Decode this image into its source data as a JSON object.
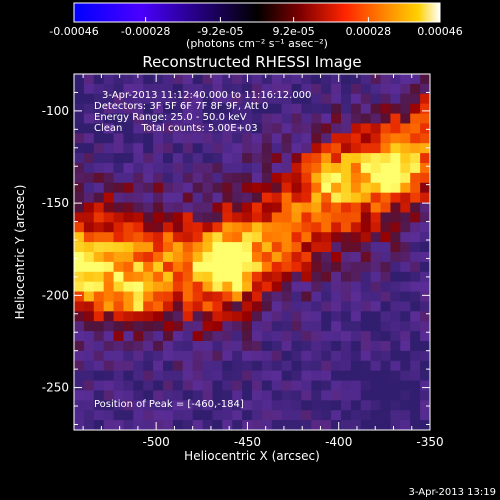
{
  "colorbar": {
    "ticks": [
      "-0.00046",
      "-0.00028",
      "-9.2e-05",
      "9.2e-05",
      "0.00028",
      "0.00046"
    ],
    "units": "(photons cm⁻² s⁻¹ asec⁻²)",
    "range": [
      -0.00046,
      0.00046
    ]
  },
  "colors": {
    "background": "#000000",
    "text": "#ffffff",
    "colormap": [
      "#0000ff",
      "#4a00ff",
      "#000000",
      "#7a0000",
      "#ff2a00",
      "#ff8a00",
      "#ffd000",
      "#ffffff"
    ],
    "map_low": "#3a1f6a",
    "map_high": "#ffff60"
  },
  "plot": {
    "title": "Reconstructed RHESSI Image",
    "info": [
      "3-Apr-2013 11:12:40.000 to 11:16:12.000",
      "Detectors: 3F 5F 6F 7F 8F 9F, Att 0",
      "Energy Range: 25.0 - 50.0 keV",
      "Clean      Total counts: 5.00E+03"
    ],
    "peak": "Position of Peak = [-460,-184]",
    "footer": "3-Apr-2013 13:19"
  },
  "chart_data": {
    "type": "heatmap",
    "title": "Reconstructed RHESSI Image",
    "xlabel": "Heliocentric X (arcsec)",
    "ylabel": "Heliocentric Y (arcsec)",
    "xlim": [
      -545,
      -350
    ],
    "ylim": [
      -273,
      -80
    ],
    "xticks": [
      "-500",
      "-450",
      "-400",
      "-350"
    ],
    "yticks": [
      "-100",
      "-150",
      "-200",
      "-250"
    ],
    "peak_position": [
      -460,
      -184
    ],
    "emission_ridge": [
      {
        "x": -545,
        "y": -180
      },
      {
        "x": -500,
        "y": -182
      },
      {
        "x": -470,
        "y": -185
      },
      {
        "x": -440,
        "y": -170
      },
      {
        "x": -405,
        "y": -148
      },
      {
        "x": -375,
        "y": -135
      },
      {
        "x": -350,
        "y": -115
      }
    ],
    "hotspots": [
      {
        "x": -460,
        "y": -184,
        "level": 1.0
      },
      {
        "x": -512,
        "y": -202,
        "level": 0.72
      },
      {
        "x": -540,
        "y": -188,
        "level": 0.6
      },
      {
        "x": -372,
        "y": -130,
        "level": 0.6
      },
      {
        "x": -405,
        "y": -133,
        "level": 0.5
      }
    ]
  }
}
